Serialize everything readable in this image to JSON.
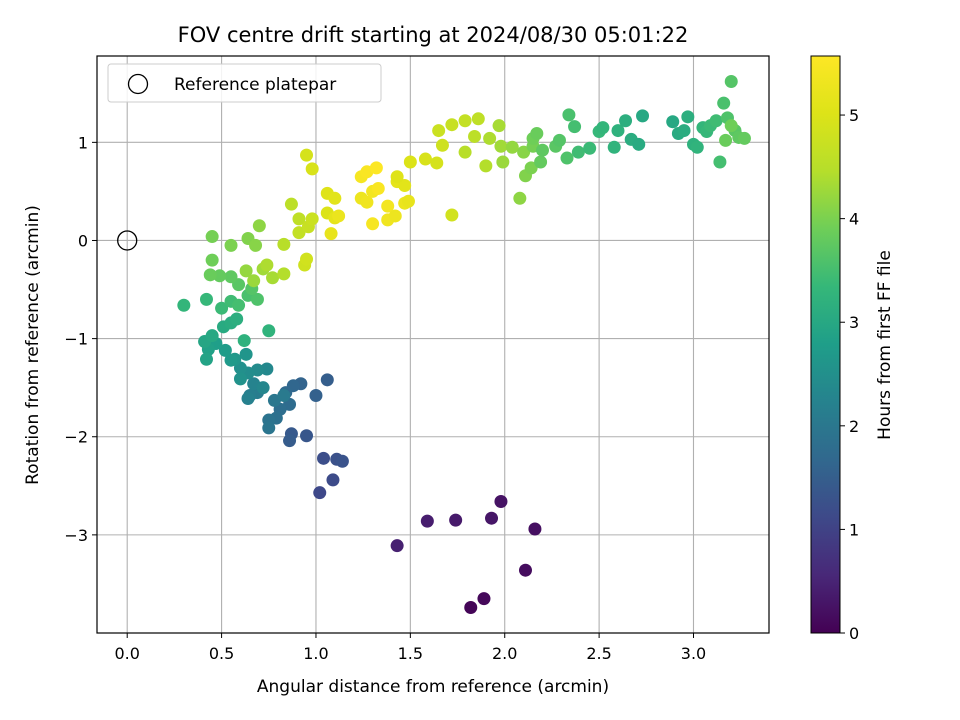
{
  "chart_data": {
    "type": "scatter",
    "title": "FOV centre drift starting at 2024/08/30 05:01:22",
    "xlabel": "Angular distance from reference (arcmin)",
    "ylabel": "Rotation from reference (arcmin)",
    "xlim": [
      -0.16,
      3.4
    ],
    "ylim": [
      -4.0,
      1.88
    ],
    "xticks": [
      0.0,
      0.5,
      1.0,
      1.5,
      2.0,
      2.5,
      3.0
    ],
    "xtick_labels": [
      "0.0",
      "0.5",
      "1.0",
      "1.5",
      "2.0",
      "2.5",
      "3.0"
    ],
    "yticks": [
      -3,
      -2,
      -1,
      0,
      1
    ],
    "ytick_labels": [
      "−3",
      "−2",
      "−1",
      "0",
      "1"
    ],
    "grid": true,
    "colormap": "viridis",
    "colorbar": {
      "label": "Hours from first FF file",
      "range": [
        0,
        5.57
      ],
      "ticks": [
        0,
        1,
        2,
        3,
        4,
        5
      ],
      "tick_labels": [
        "0",
        "1",
        "2",
        "3",
        "4",
        "5"
      ]
    },
    "legend": {
      "placement": "top-left",
      "entries": [
        {
          "label": "Reference platepar",
          "marker": "open-circle"
        }
      ]
    },
    "reference_point": {
      "x": 0.0,
      "y": 0.0
    },
    "points": [
      {
        "x": 1.82,
        "y": -3.74,
        "c": 0.05
      },
      {
        "x": 1.89,
        "y": -3.65,
        "c": 0.1
      },
      {
        "x": 2.11,
        "y": -3.36,
        "c": 0.15
      },
      {
        "x": 2.16,
        "y": -2.94,
        "c": 0.2
      },
      {
        "x": 1.98,
        "y": -2.66,
        "c": 0.25
      },
      {
        "x": 1.93,
        "y": -2.83,
        "c": 0.3
      },
      {
        "x": 1.74,
        "y": -2.85,
        "c": 0.35
      },
      {
        "x": 1.59,
        "y": -2.86,
        "c": 0.4
      },
      {
        "x": 1.43,
        "y": -3.11,
        "c": 0.45
      },
      {
        "x": 1.02,
        "y": -2.57,
        "c": 1.1
      },
      {
        "x": 1.09,
        "y": -2.44,
        "c": 1.15
      },
      {
        "x": 1.04,
        "y": -2.22,
        "c": 1.2
      },
      {
        "x": 1.11,
        "y": -2.23,
        "c": 1.25
      },
      {
        "x": 1.14,
        "y": -2.25,
        "c": 1.3
      },
      {
        "x": 0.95,
        "y": -1.99,
        "c": 1.35
      },
      {
        "x": 0.87,
        "y": -1.97,
        "c": 1.4
      },
      {
        "x": 0.86,
        "y": -2.04,
        "c": 1.45
      },
      {
        "x": 1.06,
        "y": -1.42,
        "c": 1.5
      },
      {
        "x": 1.0,
        "y": -1.58,
        "c": 1.55
      },
      {
        "x": 0.92,
        "y": -1.46,
        "c": 1.6
      },
      {
        "x": 0.88,
        "y": -1.48,
        "c": 1.65
      },
      {
        "x": 0.84,
        "y": -1.55,
        "c": 1.7
      },
      {
        "x": 0.86,
        "y": -1.67,
        "c": 1.75
      },
      {
        "x": 0.81,
        "y": -1.72,
        "c": 1.8
      },
      {
        "x": 0.79,
        "y": -1.81,
        "c": 1.85
      },
      {
        "x": 0.75,
        "y": -1.83,
        "c": 1.9
      },
      {
        "x": 0.75,
        "y": -1.91,
        "c": 1.95
      },
      {
        "x": 0.78,
        "y": -1.63,
        "c": 2.0
      },
      {
        "x": 0.83,
        "y": -1.58,
        "c": 2.05
      },
      {
        "x": 0.69,
        "y": -1.55,
        "c": 2.1
      },
      {
        "x": 0.65,
        "y": -1.58,
        "c": 2.15
      },
      {
        "x": 0.64,
        "y": -1.61,
        "c": 2.2
      },
      {
        "x": 0.67,
        "y": -1.46,
        "c": 2.25
      },
      {
        "x": 0.72,
        "y": -1.5,
        "c": 2.3
      },
      {
        "x": 0.74,
        "y": -1.31,
        "c": 2.35
      },
      {
        "x": 0.69,
        "y": -1.32,
        "c": 2.4
      },
      {
        "x": 0.64,
        "y": -1.35,
        "c": 2.45
      },
      {
        "x": 0.6,
        "y": -1.3,
        "c": 2.5
      },
      {
        "x": 0.6,
        "y": -1.41,
        "c": 2.55
      },
      {
        "x": 0.63,
        "y": -1.16,
        "c": 2.6
      },
      {
        "x": 0.57,
        "y": -1.21,
        "c": 2.65
      },
      {
        "x": 0.55,
        "y": -1.22,
        "c": 2.7
      },
      {
        "x": 0.52,
        "y": -1.12,
        "c": 2.75
      },
      {
        "x": 0.47,
        "y": -1.05,
        "c": 2.8
      },
      {
        "x": 0.43,
        "y": -1.11,
        "c": 2.85
      },
      {
        "x": 0.42,
        "y": -1.21,
        "c": 2.9
      },
      {
        "x": 0.41,
        "y": -1.03,
        "c": 2.95
      },
      {
        "x": 0.45,
        "y": -0.97,
        "c": 3.0
      },
      {
        "x": 0.51,
        "y": -0.88,
        "c": 3.05
      },
      {
        "x": 0.55,
        "y": -0.84,
        "c": 3.1
      },
      {
        "x": 0.58,
        "y": -0.8,
        "c": 3.15
      },
      {
        "x": 0.62,
        "y": -1.02,
        "c": 3.2
      },
      {
        "x": 0.75,
        "y": -0.92,
        "c": 3.25
      },
      {
        "x": 0.3,
        "y": -0.66,
        "c": 3.3
      },
      {
        "x": 0.42,
        "y": -0.6,
        "c": 3.35
      },
      {
        "x": 0.5,
        "y": -0.69,
        "c": 3.4
      },
      {
        "x": 0.55,
        "y": -0.62,
        "c": 3.45
      },
      {
        "x": 0.59,
        "y": -0.66,
        "c": 3.5
      },
      {
        "x": 0.64,
        "y": -0.56,
        "c": 3.55
      },
      {
        "x": 0.69,
        "y": -0.6,
        "c": 3.6
      },
      {
        "x": 0.66,
        "y": -0.49,
        "c": 3.65
      },
      {
        "x": 0.59,
        "y": -0.45,
        "c": 3.7
      },
      {
        "x": 0.55,
        "y": -0.37,
        "c": 3.75
      },
      {
        "x": 0.49,
        "y": -0.36,
        "c": 3.8
      },
      {
        "x": 0.44,
        "y": -0.35,
        "c": 3.85
      },
      {
        "x": 0.45,
        "y": -0.2,
        "c": 3.9
      },
      {
        "x": 0.45,
        "y": 0.04,
        "c": 3.95
      },
      {
        "x": 0.55,
        "y": -0.05,
        "c": 4.0
      },
      {
        "x": 0.64,
        "y": 0.02,
        "c": 4.05
      },
      {
        "x": 0.68,
        "y": -0.05,
        "c": 4.1
      },
      {
        "x": 0.7,
        "y": 0.15,
        "c": 4.15
      },
      {
        "x": 0.63,
        "y": -0.31,
        "c": 4.2
      },
      {
        "x": 0.67,
        "y": -0.41,
        "c": 4.25
      },
      {
        "x": 0.72,
        "y": -0.29,
        "c": 4.3
      },
      {
        "x": 0.77,
        "y": -0.38,
        "c": 4.35
      },
      {
        "x": 0.74,
        "y": -0.25,
        "c": 4.4
      },
      {
        "x": 0.83,
        "y": -0.34,
        "c": 4.45
      },
      {
        "x": 0.83,
        "y": -0.04,
        "c": 4.5
      },
      {
        "x": 0.87,
        "y": 0.37,
        "c": 4.55
      },
      {
        "x": 0.91,
        "y": 0.22,
        "c": 4.6
      },
      {
        "x": 0.91,
        "y": 0.08,
        "c": 4.65
      },
      {
        "x": 0.96,
        "y": 0.14,
        "c": 4.7
      },
      {
        "x": 0.98,
        "y": 0.22,
        "c": 4.75
      },
      {
        "x": 0.94,
        "y": -0.25,
        "c": 4.8
      },
      {
        "x": 0.95,
        "y": -0.19,
        "c": 4.85
      },
      {
        "x": 0.95,
        "y": 0.87,
        "c": 4.9
      },
      {
        "x": 0.98,
        "y": 0.73,
        "c": 4.95
      },
      {
        "x": 1.06,
        "y": 0.28,
        "c": 5.0
      },
      {
        "x": 1.06,
        "y": 0.48,
        "c": 5.05
      },
      {
        "x": 1.1,
        "y": 0.43,
        "c": 5.1
      },
      {
        "x": 1.1,
        "y": 0.23,
        "c": 5.15
      },
      {
        "x": 1.08,
        "y": 0.07,
        "c": 5.2
      },
      {
        "x": 1.12,
        "y": 0.25,
        "c": 5.25
      },
      {
        "x": 1.24,
        "y": 0.43,
        "c": 5.3
      },
      {
        "x": 1.27,
        "y": 0.39,
        "c": 5.35
      },
      {
        "x": 1.3,
        "y": 0.5,
        "c": 5.4
      },
      {
        "x": 1.24,
        "y": 0.65,
        "c": 5.45
      },
      {
        "x": 1.27,
        "y": 0.7,
        "c": 5.5
      },
      {
        "x": 1.32,
        "y": 0.74,
        "c": 5.55
      },
      {
        "x": 1.33,
        "y": 0.53,
        "c": 5.5
      },
      {
        "x": 1.3,
        "y": 0.17,
        "c": 5.45
      },
      {
        "x": 1.38,
        "y": 0.35,
        "c": 5.4
      },
      {
        "x": 1.38,
        "y": 0.21,
        "c": 5.35
      },
      {
        "x": 1.42,
        "y": 0.25,
        "c": 5.3
      },
      {
        "x": 1.47,
        "y": 0.38,
        "c": 5.25
      },
      {
        "x": 1.49,
        "y": 0.4,
        "c": 5.2
      },
      {
        "x": 1.43,
        "y": 0.6,
        "c": 5.15
      },
      {
        "x": 1.47,
        "y": 0.56,
        "c": 5.1
      },
      {
        "x": 1.43,
        "y": 0.65,
        "c": 5.05
      },
      {
        "x": 1.5,
        "y": 0.8,
        "c": 5.0
      },
      {
        "x": 1.58,
        "y": 0.83,
        "c": 4.95
      },
      {
        "x": 1.64,
        "y": 0.79,
        "c": 4.9
      },
      {
        "x": 1.72,
        "y": 0.26,
        "c": 4.85
      },
      {
        "x": 1.67,
        "y": 0.97,
        "c": 4.8
      },
      {
        "x": 1.65,
        "y": 1.12,
        "c": 4.75
      },
      {
        "x": 1.72,
        "y": 1.18,
        "c": 4.7
      },
      {
        "x": 1.79,
        "y": 1.22,
        "c": 4.65
      },
      {
        "x": 1.86,
        "y": 1.24,
        "c": 4.6
      },
      {
        "x": 1.84,
        "y": 1.06,
        "c": 4.55
      },
      {
        "x": 1.79,
        "y": 0.9,
        "c": 4.5
      },
      {
        "x": 1.9,
        "y": 0.76,
        "c": 4.45
      },
      {
        "x": 1.92,
        "y": 1.04,
        "c": 4.4
      },
      {
        "x": 1.97,
        "y": 1.17,
        "c": 4.35
      },
      {
        "x": 1.98,
        "y": 0.96,
        "c": 4.3
      },
      {
        "x": 1.99,
        "y": 0.8,
        "c": 4.25
      },
      {
        "x": 2.04,
        "y": 0.95,
        "c": 4.2
      },
      {
        "x": 2.08,
        "y": 0.43,
        "c": 4.15
      },
      {
        "x": 2.1,
        "y": 0.9,
        "c": 4.1
      },
      {
        "x": 2.11,
        "y": 0.66,
        "c": 4.05
      },
      {
        "x": 2.14,
        "y": 0.74,
        "c": 4.0
      },
      {
        "x": 2.15,
        "y": 0.96,
        "c": 3.95
      },
      {
        "x": 2.15,
        "y": 1.04,
        "c": 3.9
      },
      {
        "x": 2.17,
        "y": 1.09,
        "c": 3.85
      },
      {
        "x": 2.19,
        "y": 0.8,
        "c": 3.8
      },
      {
        "x": 2.2,
        "y": 0.92,
        "c": 3.75
      },
      {
        "x": 2.27,
        "y": 0.96,
        "c": 3.7
      },
      {
        "x": 2.29,
        "y": 1.02,
        "c": 3.65
      },
      {
        "x": 2.33,
        "y": 0.84,
        "c": 3.6
      },
      {
        "x": 2.34,
        "y": 1.28,
        "c": 3.55
      },
      {
        "x": 2.37,
        "y": 1.16,
        "c": 3.5
      },
      {
        "x": 2.39,
        "y": 0.9,
        "c": 3.45
      },
      {
        "x": 2.45,
        "y": 0.94,
        "c": 3.4
      },
      {
        "x": 2.5,
        "y": 1.11,
        "c": 3.35
      },
      {
        "x": 2.52,
        "y": 1.15,
        "c": 3.3
      },
      {
        "x": 2.58,
        "y": 0.95,
        "c": 3.25
      },
      {
        "x": 2.6,
        "y": 1.12,
        "c": 3.2
      },
      {
        "x": 2.64,
        "y": 1.22,
        "c": 3.15
      },
      {
        "x": 2.67,
        "y": 1.03,
        "c": 3.1
      },
      {
        "x": 2.71,
        "y": 0.98,
        "c": 3.05
      },
      {
        "x": 2.73,
        "y": 1.27,
        "c": 3.0
      },
      {
        "x": 2.89,
        "y": 1.21,
        "c": 3.0
      },
      {
        "x": 2.92,
        "y": 1.09,
        "c": 3.05
      },
      {
        "x": 2.95,
        "y": 1.12,
        "c": 3.1
      },
      {
        "x": 2.97,
        "y": 1.26,
        "c": 3.15
      },
      {
        "x": 3.0,
        "y": 0.98,
        "c": 3.2
      },
      {
        "x": 3.02,
        "y": 0.95,
        "c": 3.25
      },
      {
        "x": 3.05,
        "y": 1.15,
        "c": 3.3
      },
      {
        "x": 3.07,
        "y": 1.11,
        "c": 3.35
      },
      {
        "x": 3.09,
        "y": 1.17,
        "c": 3.4
      },
      {
        "x": 3.12,
        "y": 1.22,
        "c": 3.45
      },
      {
        "x": 3.14,
        "y": 0.8,
        "c": 3.5
      },
      {
        "x": 3.16,
        "y": 1.4,
        "c": 3.55
      },
      {
        "x": 3.18,
        "y": 1.25,
        "c": 3.6
      },
      {
        "x": 3.2,
        "y": 1.62,
        "c": 3.65
      },
      {
        "x": 3.22,
        "y": 1.12,
        "c": 3.7
      },
      {
        "x": 3.24,
        "y": 1.05,
        "c": 3.75
      },
      {
        "x": 3.27,
        "y": 1.04,
        "c": 3.8
      },
      {
        "x": 3.17,
        "y": 1.02,
        "c": 3.85
      },
      {
        "x": 3.2,
        "y": 1.17,
        "c": 3.9
      }
    ]
  }
}
